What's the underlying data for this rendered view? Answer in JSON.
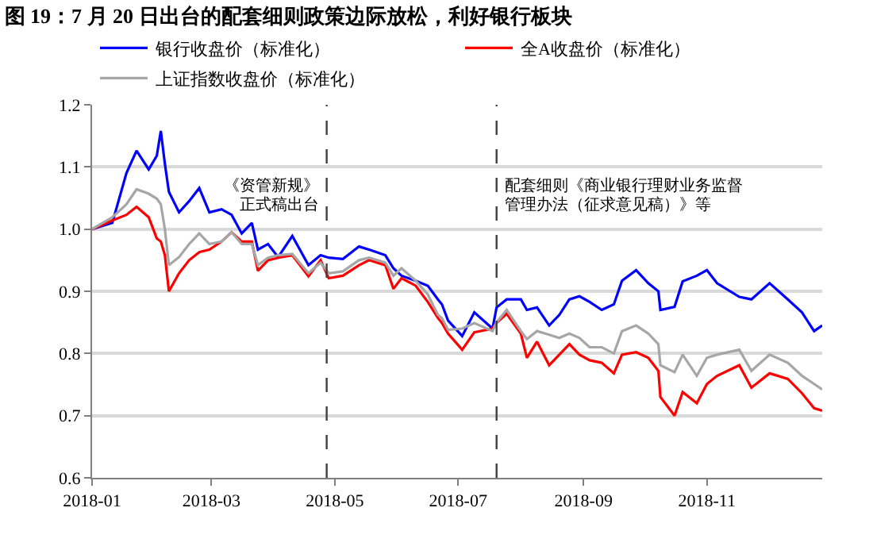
{
  "chart_data": {
    "type": "line",
    "title": "图 19：7 月 20 日出台的配套细则政策边际放松，利好银行板块",
    "x": [
      "2018-01-01",
      "2018-01-11",
      "2018-01-18",
      "2018-01-23",
      "2018-01-29",
      "2018-02-02",
      "2018-02-04",
      "2018-02-06",
      "2018-02-08",
      "2018-02-13",
      "2018-02-18",
      "2018-02-23",
      "2018-02-28",
      "2018-03-06",
      "2018-03-11",
      "2018-03-16",
      "2018-03-21",
      "2018-03-24",
      "2018-03-29",
      "2018-04-03",
      "2018-04-10",
      "2018-04-18",
      "2018-04-24",
      "2018-04-28",
      "2018-05-05",
      "2018-05-13",
      "2018-05-18",
      "2018-05-26",
      "2018-05-30",
      "2018-06-03",
      "2018-06-10",
      "2018-06-16",
      "2018-06-21",
      "2018-06-23",
      "2018-06-26",
      "2018-07-03",
      "2018-07-09",
      "2018-07-18",
      "2018-07-20",
      "2018-07-25",
      "2018-08-01",
      "2018-08-04",
      "2018-08-09",
      "2018-08-15",
      "2018-08-20",
      "2018-08-25",
      "2018-08-30",
      "2018-09-04",
      "2018-09-10",
      "2018-09-16",
      "2018-09-20",
      "2018-09-27",
      "2018-10-03",
      "2018-10-08",
      "2018-10-09",
      "2018-10-16",
      "2018-10-20",
      "2018-10-27",
      "2018-11-01",
      "2018-11-06",
      "2018-11-17",
      "2018-11-23",
      "2018-12-02",
      "2018-12-11",
      "2018-12-18",
      "2018-12-24",
      "2018-12-28"
    ],
    "series": [
      {
        "name": "银行收盘价（标准化）",
        "color": "#0000ff",
        "values": [
          1.0,
          1.01,
          1.09,
          1.126,
          1.096,
          1.118,
          1.158,
          1.105,
          1.06,
          1.027,
          1.045,
          1.066,
          1.027,
          1.032,
          1.023,
          0.993,
          1.01,
          0.967,
          0.976,
          0.955,
          0.989,
          0.942,
          0.958,
          0.954,
          0.952,
          0.972,
          0.967,
          0.958,
          0.937,
          0.925,
          0.917,
          0.909,
          0.887,
          0.879,
          0.853,
          0.828,
          0.866,
          0.84,
          0.874,
          0.887,
          0.887,
          0.87,
          0.874,
          0.845,
          0.862,
          0.887,
          0.892,
          0.883,
          0.87,
          0.879,
          0.917,
          0.934,
          0.913,
          0.9,
          0.87,
          0.875,
          0.916,
          0.925,
          0.934,
          0.913,
          0.891,
          0.887,
          0.913,
          0.887,
          0.866,
          0.836,
          0.845
        ]
      },
      {
        "name": "全A收盘价（标准化）",
        "color": "#ff0000",
        "values": [
          1.0,
          1.014,
          1.023,
          1.036,
          1.019,
          0.985,
          0.98,
          0.958,
          0.9,
          0.929,
          0.95,
          0.963,
          0.967,
          0.98,
          0.995,
          0.98,
          0.98,
          0.933,
          0.95,
          0.954,
          0.958,
          0.924,
          0.95,
          0.921,
          0.925,
          0.942,
          0.95,
          0.942,
          0.904,
          0.921,
          0.909,
          0.883,
          0.857,
          0.849,
          0.832,
          0.806,
          0.834,
          0.84,
          0.849,
          0.864,
          0.832,
          0.793,
          0.819,
          0.781,
          0.798,
          0.815,
          0.798,
          0.789,
          0.785,
          0.768,
          0.798,
          0.802,
          0.793,
          0.772,
          0.73,
          0.7,
          0.738,
          0.72,
          0.751,
          0.764,
          0.781,
          0.745,
          0.768,
          0.759,
          0.736,
          0.712,
          0.708
        ]
      },
      {
        "name": "上证指数收盘价（标准化）",
        "color": "#a6a6a6",
        "values": [
          1.0,
          1.019,
          1.04,
          1.064,
          1.057,
          1.049,
          1.04,
          1.0,
          0.942,
          0.955,
          0.976,
          0.993,
          0.976,
          0.98,
          0.995,
          0.976,
          0.976,
          0.942,
          0.954,
          0.958,
          0.96,
          0.929,
          0.946,
          0.929,
          0.932,
          0.95,
          0.954,
          0.946,
          0.925,
          0.937,
          0.917,
          0.895,
          0.862,
          0.857,
          0.838,
          0.84,
          0.849,
          0.836,
          0.85,
          0.87,
          0.836,
          0.823,
          0.836,
          0.83,
          0.825,
          0.832,
          0.825,
          0.81,
          0.81,
          0.8,
          0.836,
          0.845,
          0.832,
          0.815,
          0.781,
          0.77,
          0.798,
          0.764,
          0.793,
          0.798,
          0.806,
          0.772,
          0.798,
          0.785,
          0.764,
          0.751,
          0.742
        ]
      }
    ],
    "xlim": [
      "2018-01-01",
      "2018-12-28"
    ],
    "xticks": [
      "2018-01",
      "2018-03",
      "2018-05",
      "2018-07",
      "2018-09",
      "2018-11"
    ],
    "ylim": [
      0.6,
      1.2
    ],
    "yticks": [
      0.6,
      0.7,
      0.8,
      0.9,
      {
        "value": 1.0,
        "label": "1.0"
      },
      1.1,
      1.2
    ],
    "grid": "y",
    "legend": "top",
    "marker": "none",
    "line_style": "solid",
    "ref_lines": [
      {
        "axis": "x",
        "value": "2018-04-27",
        "color": "#404040",
        "line_style": "dashed"
      },
      {
        "axis": "x",
        "value": "2018-07-20",
        "color": "#404040",
        "line_style": "dashed"
      }
    ],
    "annotations": [
      {
        "text": "《资管新规》",
        "x": "2018-04-27",
        "y": 1.07
      },
      {
        "text": "正式稿出台",
        "x": "2018-04-27",
        "y": 1.038
      },
      {
        "text": "配套细则《商业银行理财业务监督",
        "x": "2018-07-20",
        "y": 1.07
      },
      {
        "text": "管理办法（征求意见稿）》等",
        "x": "2018-07-20",
        "y": 1.038
      }
    ]
  }
}
